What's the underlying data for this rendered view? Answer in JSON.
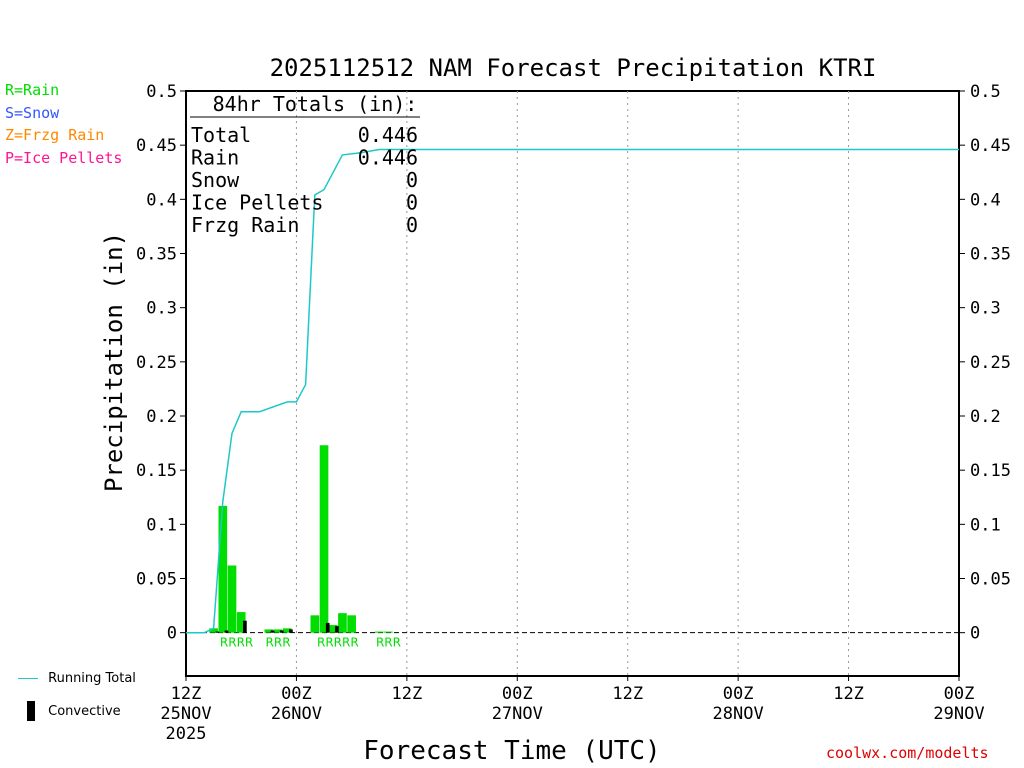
{
  "chart_data": {
    "type": "bar",
    "title": "2025112512 NAM Forecast Precipitation KTRI",
    "xlabel": "Forecast Time (UTC)",
    "ylabel": "Precipitation (in)",
    "ylim": [
      -0.04,
      0.5
    ],
    "y_ticks": [
      "0.5",
      "0.45",
      "0.4",
      "0.35",
      "0.3",
      "0.25",
      "0.2",
      "0.15",
      "0.1",
      "0.05",
      "0"
    ],
    "x_range_hours": [
      0,
      84
    ],
    "x_ticks": [
      {
        "hour": 0,
        "label": "12Z",
        "date": "25NOV",
        "year": "2025"
      },
      {
        "hour": 12,
        "label": "00Z",
        "date": "26NOV",
        "year": ""
      },
      {
        "hour": 24,
        "label": "12Z",
        "date": "",
        "year": ""
      },
      {
        "hour": 36,
        "label": "00Z",
        "date": "27NOV",
        "year": ""
      },
      {
        "hour": 48,
        "label": "12Z",
        "date": "",
        "year": ""
      },
      {
        "hour": 60,
        "label": "00Z",
        "date": "28NOV",
        "year": ""
      },
      {
        "hour": 72,
        "label": "12Z",
        "date": "",
        "year": ""
      },
      {
        "hour": 84,
        "label": "00Z",
        "date": "29NOV",
        "year": ""
      }
    ],
    "series": [
      {
        "name": "Rain",
        "color": "#00dd00",
        "points": [
          {
            "hour": 3,
            "value": 0.004
          },
          {
            "hour": 4,
            "value": 0.117
          },
          {
            "hour": 5,
            "value": 0.062
          },
          {
            "hour": 6,
            "value": 0.019
          },
          {
            "hour": 9,
            "value": 0.003
          },
          {
            "hour": 10,
            "value": 0.003
          },
          {
            "hour": 11,
            "value": 0.004
          },
          {
            "hour": 14,
            "value": 0.016
          },
          {
            "hour": 15,
            "value": 0.173
          },
          {
            "hour": 16,
            "value": 0.007
          },
          {
            "hour": 17,
            "value": 0.018
          },
          {
            "hour": 18,
            "value": 0.016
          },
          {
            "hour": 21,
            "value": 0.001
          },
          {
            "hour": 22,
            "value": 0.001
          }
        ]
      },
      {
        "name": "Convective",
        "color": "#000000",
        "points": [
          {
            "hour": 3,
            "value": 0.001
          },
          {
            "hour": 4,
            "value": 0.002
          },
          {
            "hour": 6,
            "value": 0.011
          },
          {
            "hour": 9,
            "value": 0.002
          },
          {
            "hour": 10,
            "value": 0.002
          },
          {
            "hour": 11,
            "value": 0.003
          },
          {
            "hour": 15,
            "value": 0.009
          },
          {
            "hour": 16,
            "value": 0.006
          }
        ]
      },
      {
        "name": "Running Total",
        "color": "#1ec8c8",
        "points": [
          {
            "hour": 0,
            "value": 0.0
          },
          {
            "hour": 2,
            "value": 0.0
          },
          {
            "hour": 3,
            "value": 0.004
          },
          {
            "hour": 4,
            "value": 0.121
          },
          {
            "hour": 5,
            "value": 0.184
          },
          {
            "hour": 6,
            "value": 0.204
          },
          {
            "hour": 8,
            "value": 0.204
          },
          {
            "hour": 11,
            "value": 0.213
          },
          {
            "hour": 12,
            "value": 0.213
          },
          {
            "hour": 13,
            "value": 0.229
          },
          {
            "hour": 14,
            "value": 0.404
          },
          {
            "hour": 15,
            "value": 0.409
          },
          {
            "hour": 17,
            "value": 0.441
          },
          {
            "hour": 19,
            "value": 0.443
          },
          {
            "hour": 21,
            "value": 0.446
          },
          {
            "hour": 84,
            "value": 0.446
          }
        ]
      }
    ],
    "precip_type_labels": [
      {
        "hour": 5.5,
        "text": "RRRR"
      },
      {
        "hour": 10,
        "text": "RRR"
      },
      {
        "hour": 16.5,
        "text": "RRRRR"
      },
      {
        "hour": 22,
        "text": "RRR"
      }
    ],
    "totals": {
      "heading": "84hr Totals (in):",
      "rows": [
        {
          "label": "Total",
          "value": "0.446"
        },
        {
          "label": "Rain",
          "value": "0.446"
        },
        {
          "label": "Snow",
          "value": "0"
        },
        {
          "label": "Ice Pellets",
          "value": "0"
        },
        {
          "label": "Frzg Rain",
          "value": "0"
        }
      ]
    },
    "type_legend": [
      {
        "text": "R=Rain",
        "color": "#00dd00"
      },
      {
        "text": "S=Snow",
        "color": "#3355ff"
      },
      {
        "text": "Z=Frzg Rain",
        "color": "#ff8800"
      },
      {
        "text": "P=Ice Pellets",
        "color": "#ff1493"
      }
    ],
    "bottom_legend": {
      "running_total": "Running Total",
      "convective": "Convective"
    },
    "source": "coolwx.com/modelts"
  }
}
